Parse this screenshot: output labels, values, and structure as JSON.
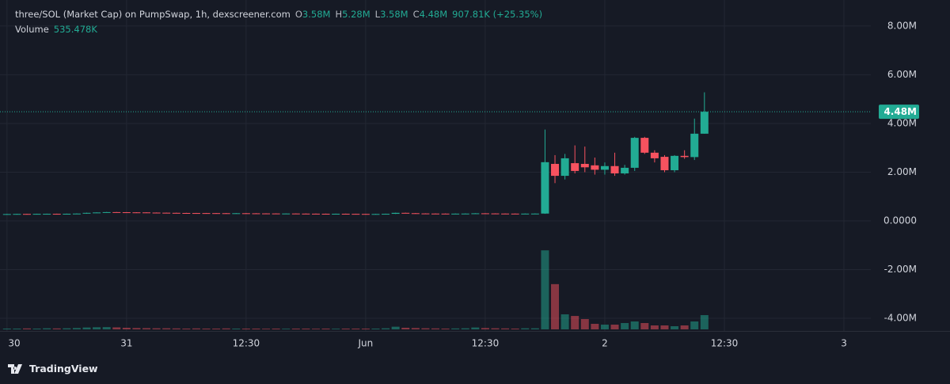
{
  "chart_data": {
    "type": "candlestick",
    "title": "three/SOL (Market Cap) on PumpSwap, 1h, dexscreener.com",
    "ohlc_legend": [
      {
        "key": "O",
        "text": "3.58M"
      },
      {
        "key": "H",
        "text": "5.28M"
      },
      {
        "key": "L",
        "text": "3.58M"
      },
      {
        "key": "C",
        "text": "4.48M"
      }
    ],
    "change_text": "907.81K (+25.35%)",
    "volume_title": "Volume",
    "volume_text": "535.478K",
    "x": [
      0,
      1,
      2,
      3,
      4,
      5,
      6,
      7,
      8,
      9,
      10,
      11,
      12,
      13,
      14,
      15,
      16,
      17,
      18,
      19,
      20,
      21,
      22,
      23,
      24,
      25,
      26,
      27,
      28,
      29,
      30,
      31,
      32,
      33,
      34,
      35,
      36,
      37,
      38,
      39,
      40,
      41,
      42,
      43,
      44,
      45,
      46,
      47,
      48,
      49,
      50,
      51,
      52,
      53,
      54,
      55,
      56,
      57,
      58,
      59,
      60,
      61,
      62,
      63,
      64,
      65,
      66,
      67,
      68,
      69,
      70
    ],
    "open": [
      0.275,
      0.28,
      0.285,
      0.282,
      0.288,
      0.29,
      0.286,
      0.292,
      0.3,
      0.33,
      0.345,
      0.36,
      0.355,
      0.35,
      0.348,
      0.34,
      0.335,
      0.33,
      0.325,
      0.322,
      0.32,
      0.318,
      0.315,
      0.312,
      0.314,
      0.31,
      0.306,
      0.304,
      0.3,
      0.302,
      0.298,
      0.295,
      0.292,
      0.29,
      0.292,
      0.288,
      0.285,
      0.282,
      0.283,
      0.29,
      0.33,
      0.315,
      0.305,
      0.3,
      0.298,
      0.295,
      0.297,
      0.3,
      0.31,
      0.305,
      0.3,
      0.298,
      0.295,
      0.298,
      0.3,
      2.34,
      1.85,
      2.37,
      2.34,
      2.28,
      2.1,
      2.25,
      1.95,
      2.18,
      3.41,
      2.8,
      2.63,
      2.08,
      2.67,
      2.62,
      3.58
    ],
    "high": [
      0.286,
      0.291,
      0.291,
      0.294,
      0.296,
      0.296,
      0.298,
      0.306,
      0.336,
      0.351,
      0.366,
      0.366,
      0.361,
      0.356,
      0.354,
      0.346,
      0.341,
      0.336,
      0.331,
      0.328,
      0.326,
      0.324,
      0.321,
      0.32,
      0.32,
      0.316,
      0.312,
      0.31,
      0.308,
      0.308,
      0.304,
      0.301,
      0.298,
      0.298,
      0.298,
      0.294,
      0.291,
      0.289,
      0.296,
      0.336,
      0.336,
      0.321,
      0.311,
      0.306,
      0.304,
      0.303,
      0.306,
      0.316,
      0.316,
      0.311,
      0.306,
      0.304,
      0.304,
      0.306,
      3.75,
      2.7,
      2.75,
      3.1,
      3.05,
      2.6,
      2.4,
      2.8,
      2.3,
      3.45,
      3.45,
      2.9,
      2.7,
      2.7,
      2.9,
      4.2,
      5.28
    ],
    "low": [
      0.269,
      0.274,
      0.276,
      0.276,
      0.282,
      0.28,
      0.28,
      0.286,
      0.294,
      0.324,
      0.339,
      0.349,
      0.344,
      0.342,
      0.334,
      0.329,
      0.324,
      0.319,
      0.316,
      0.314,
      0.312,
      0.309,
      0.306,
      0.306,
      0.304,
      0.3,
      0.298,
      0.294,
      0.294,
      0.292,
      0.289,
      0.286,
      0.284,
      0.284,
      0.282,
      0.279,
      0.276,
      0.276,
      0.277,
      0.284,
      0.309,
      0.299,
      0.294,
      0.292,
      0.289,
      0.289,
      0.291,
      0.294,
      0.299,
      0.294,
      0.292,
      0.289,
      0.289,
      0.292,
      0.29,
      1.55,
      1.7,
      1.95,
      2.0,
      1.9,
      1.9,
      1.85,
      1.9,
      2.05,
      2.75,
      2.4,
      2.0,
      2.0,
      2.55,
      2.5,
      3.58
    ],
    "close": [
      0.28,
      0.285,
      0.282,
      0.288,
      0.29,
      0.286,
      0.292,
      0.3,
      0.33,
      0.345,
      0.36,
      0.355,
      0.35,
      0.348,
      0.34,
      0.335,
      0.33,
      0.325,
      0.322,
      0.32,
      0.318,
      0.315,
      0.312,
      0.314,
      0.31,
      0.306,
      0.304,
      0.3,
      0.302,
      0.298,
      0.295,
      0.292,
      0.29,
      0.292,
      0.288,
      0.285,
      0.282,
      0.283,
      0.29,
      0.33,
      0.315,
      0.305,
      0.3,
      0.298,
      0.295,
      0.297,
      0.3,
      0.31,
      0.305,
      0.3,
      0.298,
      0.295,
      0.298,
      0.3,
      2.41,
      1.85,
      2.57,
      2.05,
      2.2,
      2.1,
      2.25,
      1.95,
      2.18,
      3.41,
      2.8,
      2.57,
      2.08,
      2.67,
      2.62,
      3.58,
      4.48
    ],
    "volume": [
      0.03,
      0.03,
      0.035,
      0.03,
      0.04,
      0.035,
      0.04,
      0.05,
      0.07,
      0.08,
      0.085,
      0.075,
      0.06,
      0.05,
      0.045,
      0.04,
      0.04,
      0.035,
      0.03,
      0.035,
      0.03,
      0.03,
      0.035,
      0.03,
      0.03,
      0.03,
      0.025,
      0.03,
      0.025,
      0.03,
      0.03,
      0.025,
      0.03,
      0.025,
      0.03,
      0.03,
      0.03,
      0.03,
      0.04,
      0.1,
      0.06,
      0.05,
      0.04,
      0.035,
      0.03,
      0.035,
      0.04,
      0.07,
      0.05,
      0.04,
      0.035,
      0.03,
      0.04,
      0.04,
      2.97,
      1.7,
      0.565,
      0.505,
      0.387,
      0.208,
      0.178,
      0.178,
      0.238,
      0.297,
      0.238,
      0.149,
      0.149,
      0.119,
      0.149,
      0.297,
      0.535478
    ],
    "up_color": "#22ab94",
    "down_color": "#f7525f",
    "xlim": [
      -0.7,
      86.7
    ],
    "xticks": [
      {
        "value": 0,
        "label": "30"
      },
      {
        "value": 12,
        "label": "31"
      },
      {
        "value": 24,
        "label": "12:30"
      },
      {
        "value": 36,
        "label": "Jun"
      },
      {
        "value": 48,
        "label": "12:30"
      },
      {
        "value": 60,
        "label": "2"
      },
      {
        "value": 72,
        "label": "12:30"
      },
      {
        "value": 84,
        "label": "3"
      }
    ],
    "ylim": [
      -4.52,
      9.07
    ],
    "yticks": [
      {
        "value": 8,
        "label": "8.00M"
      },
      {
        "value": 6,
        "label": "6.00M"
      },
      {
        "value": 4,
        "label": "4.00M"
      },
      {
        "value": 2,
        "label": "2.00M"
      },
      {
        "value": 0,
        "label": "0.0000"
      },
      {
        "value": -2,
        "label": "-2.00M"
      },
      {
        "value": -4,
        "label": "-4.00M"
      }
    ],
    "volume_lim": [
      0,
      3.57
    ],
    "last_price": {
      "value": 4.48,
      "label": "4.48M"
    },
    "grid": true
  },
  "footer": {
    "brand": "TradingView"
  }
}
